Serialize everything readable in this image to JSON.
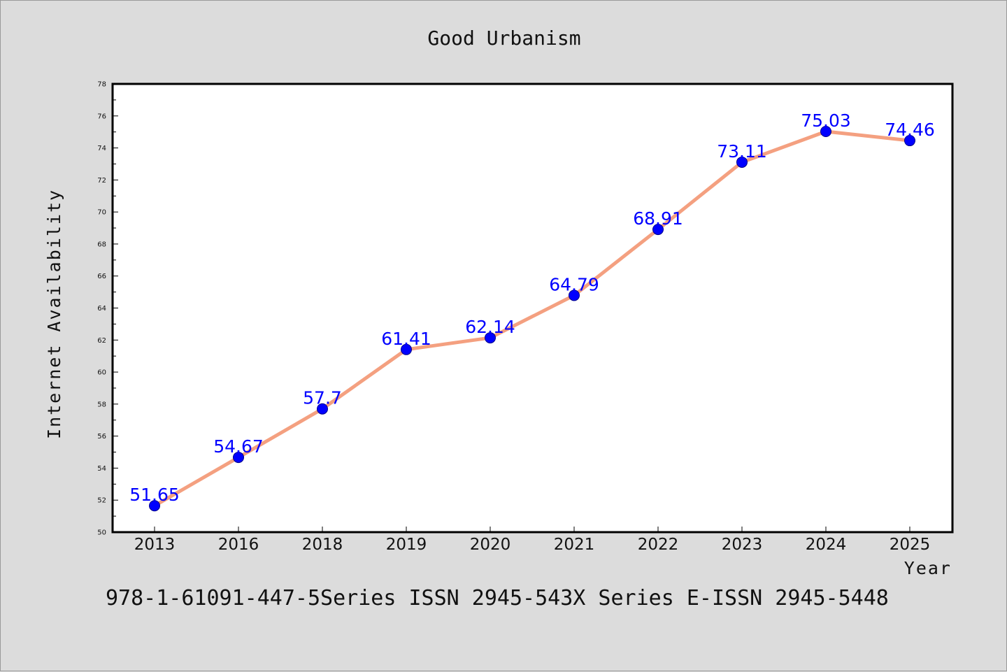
{
  "chart_data": {
    "type": "line",
    "title": "Good Urbanism",
    "xlabel": "Year",
    "ylabel": "Internet Availability",
    "categories": [
      "2013",
      "2016",
      "2018",
      "2019",
      "2020",
      "2021",
      "2022",
      "2023",
      "2024",
      "2025"
    ],
    "values": [
      51.65,
      54.67,
      57.7,
      61.41,
      62.14,
      64.79,
      68.91,
      73.11,
      75.03,
      74.46
    ],
    "data_labels": [
      "51.65",
      "54.67",
      "57.7",
      "61.41",
      "62.14",
      "64.79",
      "68.91",
      "73.11",
      "75.03",
      "74.46"
    ],
    "ylim": [
      50,
      78
    ],
    "yticks": [
      50,
      52,
      54,
      56,
      58,
      60,
      62,
      64,
      66,
      68,
      70,
      72,
      74,
      76,
      78
    ],
    "grid": false,
    "legend": "none",
    "colors": {
      "line": "#f4a080",
      "marker": "#0000ff",
      "label": "#0000ff",
      "plot_bg": "#ffffff",
      "page_bg": "#dcdcdc"
    }
  },
  "footer": "978-1-61091-447-5Series ISSN 2945-543X Series E-ISSN 2945-5448"
}
